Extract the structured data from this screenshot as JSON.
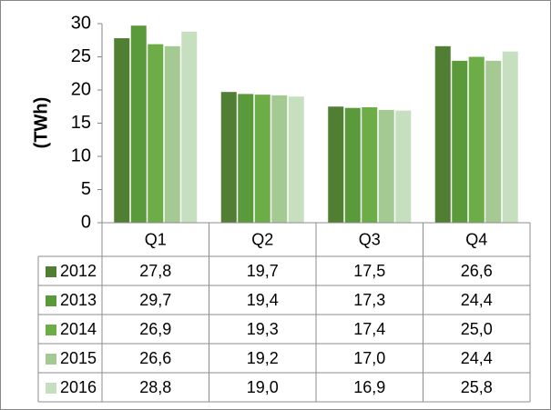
{
  "chart_data": {
    "type": "bar",
    "y_label": "(TWh)",
    "categories": [
      "Q1",
      "Q2",
      "Q3",
      "Q4"
    ],
    "series": [
      {
        "name": "2012",
        "color": "#507e32",
        "values": [
          27.8,
          19.7,
          17.5,
          26.6
        ],
        "value_labels": [
          "27,8",
          "19,7",
          "17,5",
          "26,6"
        ]
      },
      {
        "name": "2013",
        "color": "#5b9a3a",
        "values": [
          29.7,
          19.4,
          17.3,
          24.4
        ],
        "value_labels": [
          "29,7",
          "19,4",
          "17,3",
          "24,4"
        ]
      },
      {
        "name": "2014",
        "color": "#6cad47",
        "values": [
          26.9,
          19.3,
          17.4,
          25.0
        ],
        "value_labels": [
          "26,9",
          "19,3",
          "17,4",
          "25,0"
        ]
      },
      {
        "name": "2015",
        "color": "#a5c993",
        "values": [
          26.6,
          19.2,
          17.0,
          24.4
        ],
        "value_labels": [
          "26,6",
          "19,2",
          "17,0",
          "24,4"
        ]
      },
      {
        "name": "2016",
        "color": "#c6dfbf",
        "values": [
          28.8,
          19.0,
          16.9,
          25.8
        ],
        "value_labels": [
          "28,8",
          "19,0",
          "16,9",
          "25,8"
        ]
      }
    ],
    "ylim": [
      0,
      30
    ],
    "yticks": [
      0,
      5,
      10,
      15,
      20,
      25,
      30
    ],
    "grid": false
  }
}
